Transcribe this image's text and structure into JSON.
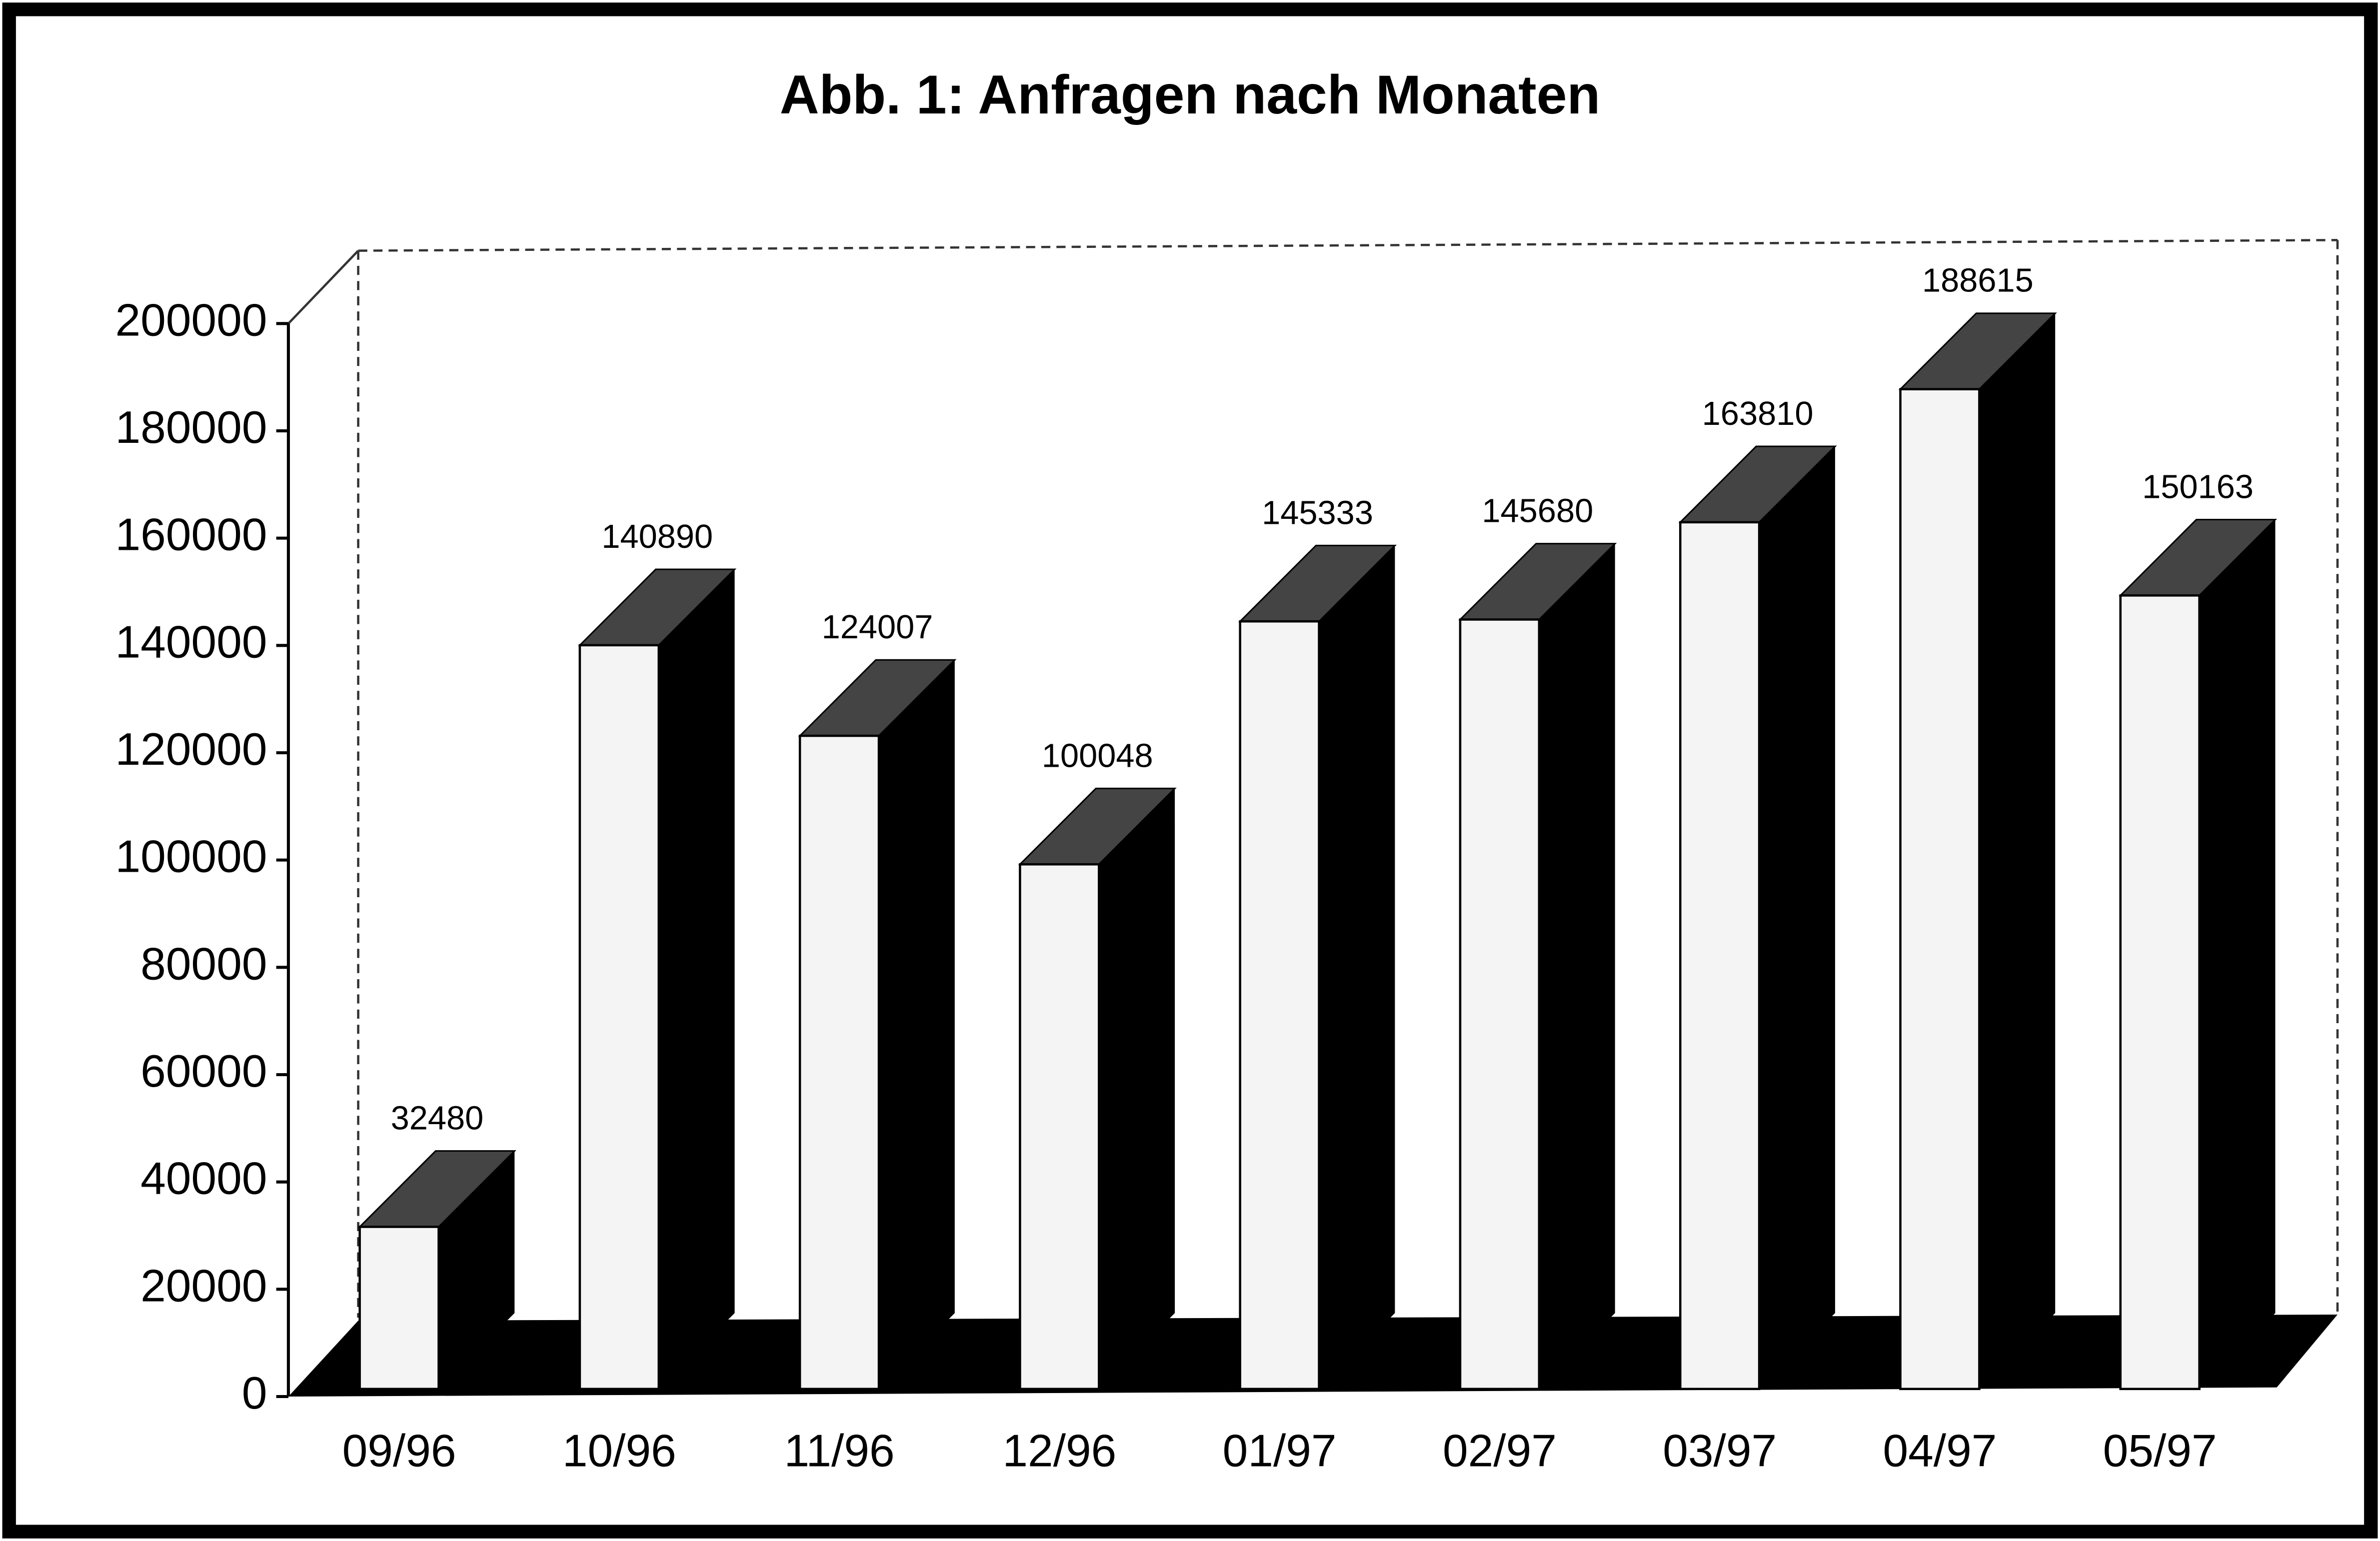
{
  "chart_data": {
    "type": "bar3d",
    "title": "Abb. 1: Anfragen nach Monaten",
    "categories": [
      "09/96",
      "10/96",
      "11/96",
      "12/96",
      "01/97",
      "02/97",
      "03/97",
      "04/97",
      "05/97"
    ],
    "values": [
      32480,
      140890,
      124007,
      100048,
      145333,
      145680,
      163810,
      188615,
      150163
    ],
    "color": "#f4f4f4",
    "ylim": [
      0,
      200000
    ],
    "yticks": [
      0,
      20000,
      40000,
      60000,
      80000,
      100000,
      120000,
      140000,
      160000,
      180000,
      200000
    ]
  }
}
